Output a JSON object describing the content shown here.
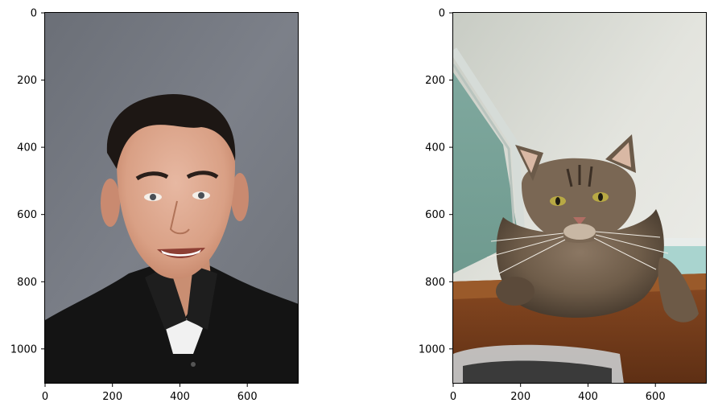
{
  "figure": {
    "panels": [
      {
        "subject": "portrait of a smiling man with short dark hair wearing a black collared shirt against a grey studio background",
        "xticks": [
          "0",
          "200",
          "400",
          "600"
        ],
        "yticks": [
          "0",
          "200",
          "400",
          "600",
          "800",
          "1000"
        ]
      },
      {
        "subject": "long-haired tabby cat with yellow-green eyes resting its paws on a wooden ledge under a white textured ceiling and teal wall",
        "xticks": [
          "0",
          "200",
          "400",
          "600"
        ],
        "yticks": [
          "0",
          "200",
          "400",
          "600",
          "800",
          "1000"
        ]
      }
    ]
  },
  "chart_data": [
    {
      "type": "image",
      "xlim": [
        0,
        752
      ],
      "ylim": [
        1104,
        0
      ],
      "xticks": [
        0,
        200,
        400,
        600
      ],
      "yticks": [
        0,
        200,
        400,
        600,
        800,
        1000
      ]
    },
    {
      "type": "image",
      "xlim": [
        0,
        752
      ],
      "ylim": [
        1104,
        0
      ],
      "xticks": [
        0,
        200,
        400,
        600
      ],
      "yticks": [
        0,
        200,
        400,
        600,
        800,
        1000
      ]
    }
  ]
}
